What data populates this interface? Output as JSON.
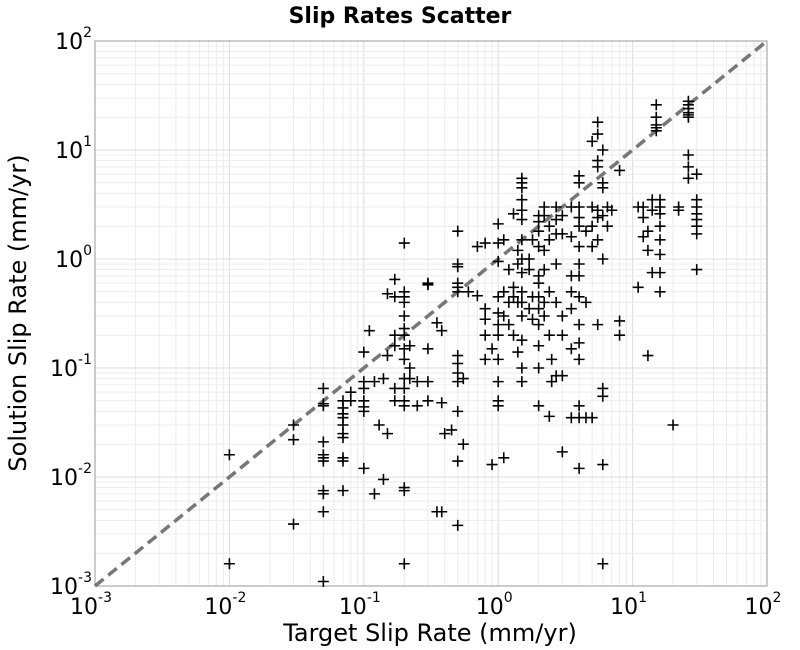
{
  "chart_data": {
    "type": "scatter",
    "title": "Slip Rates Scatter",
    "xlabel": "Target Slip Rate (mm/yr)",
    "ylabel": "Solution Slip Rate (mm/yr)",
    "xscale": "log",
    "yscale": "log",
    "xlim": [
      0.001,
      100
    ],
    "ylim": [
      0.001,
      100
    ],
    "x_ticks": [
      {
        "base": "10",
        "exp": "-3"
      },
      {
        "base": "10",
        "exp": "-2"
      },
      {
        "base": "10",
        "exp": "-1"
      },
      {
        "base": "10",
        "exp": "0"
      },
      {
        "base": "10",
        "exp": "1"
      },
      {
        "base": "10",
        "exp": "2"
      }
    ],
    "y_ticks": [
      {
        "base": "10",
        "exp": "-3"
      },
      {
        "base": "10",
        "exp": "-2"
      },
      {
        "base": "10",
        "exp": "-1"
      },
      {
        "base": "10",
        "exp": "0"
      },
      {
        "base": "10",
        "exp": "1"
      },
      {
        "base": "10",
        "exp": "2"
      }
    ],
    "grid": true,
    "marker": "+",
    "marker_color": "#000000",
    "reference_line": {
      "style": "dashed",
      "color": "#777777",
      "from": [
        0.001,
        0.001
      ],
      "to": [
        100,
        100
      ]
    },
    "points": [
      [
        0.01,
        0.016
      ],
      [
        0.01,
        0.0016
      ],
      [
        0.03,
        0.03
      ],
      [
        0.03,
        0.022
      ],
      [
        0.03,
        0.0037
      ],
      [
        0.05,
        0.065
      ],
      [
        0.05,
        0.045
      ],
      [
        0.05,
        0.047
      ],
      [
        0.05,
        0.021
      ],
      [
        0.05,
        0.016
      ],
      [
        0.05,
        0.015
      ],
      [
        0.05,
        0.014
      ],
      [
        0.05,
        0.0075
      ],
      [
        0.05,
        0.007
      ],
      [
        0.05,
        0.0048
      ],
      [
        0.05,
        0.0011
      ],
      [
        0.07,
        0.05
      ],
      [
        0.07,
        0.043
      ],
      [
        0.07,
        0.038
      ],
      [
        0.07,
        0.035
      ],
      [
        0.07,
        0.03
      ],
      [
        0.07,
        0.025
      ],
      [
        0.07,
        0.023
      ],
      [
        0.07,
        0.015
      ],
      [
        0.07,
        0.014
      ],
      [
        0.07,
        0.0075
      ],
      [
        0.08,
        0.05
      ],
      [
        0.08,
        0.06
      ],
      [
        0.1,
        0.14
      ],
      [
        0.1,
        0.075
      ],
      [
        0.1,
        0.065
      ],
      [
        0.1,
        0.05
      ],
      [
        0.1,
        0.044
      ],
      [
        0.1,
        0.04
      ],
      [
        0.1,
        0.012
      ],
      [
        0.11,
        0.22
      ],
      [
        0.12,
        0.075
      ],
      [
        0.12,
        0.007
      ],
      [
        0.13,
        0.03
      ],
      [
        0.14,
        0.08
      ],
      [
        0.14,
        0.0095
      ],
      [
        0.15,
        0.48
      ],
      [
        0.15,
        0.13
      ],
      [
        0.15,
        0.025
      ],
      [
        0.17,
        0.65
      ],
      [
        0.17,
        0.45
      ],
      [
        0.17,
        0.2
      ],
      [
        0.17,
        0.16
      ],
      [
        0.17,
        0.065
      ],
      [
        0.17,
        0.05
      ],
      [
        0.2,
        1.4
      ],
      [
        0.2,
        0.5
      ],
      [
        0.2,
        0.45
      ],
      [
        0.2,
        0.4
      ],
      [
        0.2,
        0.3
      ],
      [
        0.2,
        0.23
      ],
      [
        0.2,
        0.2
      ],
      [
        0.2,
        0.15
      ],
      [
        0.2,
        0.12
      ],
      [
        0.2,
        0.08
      ],
      [
        0.2,
        0.065
      ],
      [
        0.2,
        0.05
      ],
      [
        0.2,
        0.045
      ],
      [
        0.2,
        0.008
      ],
      [
        0.2,
        0.0075
      ],
      [
        0.2,
        0.0016
      ],
      [
        0.22,
        0.16
      ],
      [
        0.22,
        0.1
      ],
      [
        0.22,
        0.08
      ],
      [
        0.25,
        0.075
      ],
      [
        0.25,
        0.045
      ],
      [
        0.3,
        0.6
      ],
      [
        0.3,
        0.58
      ],
      [
        0.3,
        0.15
      ],
      [
        0.3,
        0.075
      ],
      [
        0.3,
        0.05
      ],
      [
        0.35,
        0.26
      ],
      [
        0.35,
        0.0048
      ],
      [
        0.38,
        0.22
      ],
      [
        0.38,
        0.048
      ],
      [
        0.38,
        0.0048
      ],
      [
        0.4,
        0.025
      ],
      [
        0.45,
        0.027
      ],
      [
        0.5,
        1.8
      ],
      [
        0.5,
        0.9
      ],
      [
        0.5,
        0.85
      ],
      [
        0.5,
        0.6
      ],
      [
        0.5,
        0.55
      ],
      [
        0.5,
        0.5
      ],
      [
        0.5,
        0.13
      ],
      [
        0.5,
        0.11
      ],
      [
        0.5,
        0.09
      ],
      [
        0.5,
        0.075
      ],
      [
        0.5,
        0.04
      ],
      [
        0.5,
        0.014
      ],
      [
        0.5,
        0.0036
      ],
      [
        0.55,
        0.08
      ],
      [
        0.55,
        0.02
      ],
      [
        0.6,
        0.5
      ],
      [
        0.7,
        1.3
      ],
      [
        0.7,
        0.46
      ],
      [
        0.8,
        1.4
      ],
      [
        0.8,
        0.35
      ],
      [
        0.8,
        0.28
      ],
      [
        0.8,
        0.2
      ],
      [
        0.8,
        0.12
      ],
      [
        0.9,
        0.15
      ],
      [
        0.9,
        0.013
      ],
      [
        1.0,
        2.1
      ],
      [
        1.0,
        1.4
      ],
      [
        1.0,
        0.95
      ],
      [
        1.0,
        0.45
      ],
      [
        1.0,
        0.32
      ],
      [
        1.0,
        0.25
      ],
      [
        1.0,
        0.2
      ],
      [
        1.0,
        0.12
      ],
      [
        1.0,
        0.075
      ],
      [
        1.0,
        0.05
      ],
      [
        1.0,
        0.045
      ],
      [
        1.1,
        1.5
      ],
      [
        1.1,
        0.5
      ],
      [
        1.1,
        0.3
      ],
      [
        1.1,
        0.015
      ],
      [
        1.2,
        0.8
      ],
      [
        1.2,
        0.4
      ],
      [
        1.2,
        0.25
      ],
      [
        1.3,
        2.6
      ],
      [
        1.3,
        0.55
      ],
      [
        1.3,
        0.45
      ],
      [
        1.3,
        0.2
      ],
      [
        1.4,
        1.2
      ],
      [
        1.4,
        0.9
      ],
      [
        1.4,
        0.4
      ],
      [
        1.4,
        0.14
      ],
      [
        1.5,
        5.5
      ],
      [
        1.5,
        5.0
      ],
      [
        1.5,
        4.5
      ],
      [
        1.5,
        3.5
      ],
      [
        1.5,
        2.8
      ],
      [
        1.5,
        2.3
      ],
      [
        1.5,
        1.5
      ],
      [
        1.5,
        1.0
      ],
      [
        1.5,
        0.75
      ],
      [
        1.5,
        0.5
      ],
      [
        1.5,
        0.4
      ],
      [
        1.5,
        0.3
      ],
      [
        1.5,
        0.18
      ],
      [
        1.5,
        0.1
      ],
      [
        1.5,
        0.075
      ],
      [
        1.7,
        1.0
      ],
      [
        1.7,
        0.8
      ],
      [
        1.7,
        0.35
      ],
      [
        1.8,
        1.5
      ],
      [
        1.8,
        0.45
      ],
      [
        1.8,
        0.28
      ],
      [
        2.0,
        2.5
      ],
      [
        2.0,
        2.2
      ],
      [
        2.0,
        1.8
      ],
      [
        2.0,
        1.3
      ],
      [
        2.0,
        0.7
      ],
      [
        2.0,
        0.6
      ],
      [
        2.0,
        0.45
      ],
      [
        2.0,
        0.35
      ],
      [
        2.0,
        0.25
      ],
      [
        2.0,
        0.16
      ],
      [
        2.0,
        0.1
      ],
      [
        2.0,
        0.045
      ],
      [
        2.2,
        3.0
      ],
      [
        2.2,
        2.5
      ],
      [
        2.2,
        1.2
      ],
      [
        2.2,
        0.8
      ],
      [
        2.2,
        0.4
      ],
      [
        2.2,
        0.3
      ],
      [
        2.4,
        2.0
      ],
      [
        2.4,
        1.5
      ],
      [
        2.4,
        0.5
      ],
      [
        2.4,
        0.2
      ],
      [
        2.4,
        0.036
      ],
      [
        2.5,
        0.12
      ],
      [
        2.5,
        0.075
      ],
      [
        2.7,
        3.0
      ],
      [
        2.7,
        2.3
      ],
      [
        2.7,
        1.7
      ],
      [
        2.7,
        0.9
      ],
      [
        2.7,
        0.4
      ],
      [
        2.7,
        0.085
      ],
      [
        3.0,
        2.5
      ],
      [
        3.0,
        1.7
      ],
      [
        3.0,
        0.3
      ],
      [
        3.0,
        0.2
      ],
      [
        3.0,
        0.085
      ],
      [
        3.0,
        0.017
      ],
      [
        3.5,
        3.0
      ],
      [
        3.5,
        1.6
      ],
      [
        3.5,
        0.7
      ],
      [
        3.5,
        0.5
      ],
      [
        3.5,
        0.35
      ],
      [
        3.5,
        0.15
      ],
      [
        3.5,
        0.035
      ],
      [
        4.0,
        5.8
      ],
      [
        4.0,
        5.0
      ],
      [
        4.0,
        3.0
      ],
      [
        4.0,
        2.4
      ],
      [
        4.0,
        2.0
      ],
      [
        4.0,
        1.3
      ],
      [
        4.0,
        0.9
      ],
      [
        4.0,
        0.7
      ],
      [
        4.0,
        0.45
      ],
      [
        4.0,
        0.25
      ],
      [
        4.0,
        0.17
      ],
      [
        4.0,
        0.12
      ],
      [
        4.0,
        0.045
      ],
      [
        4.0,
        0.035
      ],
      [
        4.0,
        0.012
      ],
      [
        4.5,
        1.8
      ],
      [
        4.5,
        0.4
      ],
      [
        4.5,
        0.035
      ],
      [
        5.0,
        12.0
      ],
      [
        5.0,
        3.0
      ],
      [
        5.0,
        2.0
      ],
      [
        5.0,
        1.3
      ],
      [
        5.0,
        0.035
      ],
      [
        5.5,
        18.0
      ],
      [
        5.5,
        14.0
      ],
      [
        5.5,
        8.0
      ],
      [
        5.5,
        7.0
      ],
      [
        5.5,
        2.8
      ],
      [
        5.5,
        2.4
      ],
      [
        5.5,
        1.5
      ],
      [
        5.5,
        0.25
      ],
      [
        6.0,
        10.0
      ],
      [
        6.0,
        5.0
      ],
      [
        6.0,
        4.5
      ],
      [
        6.0,
        2.5
      ],
      [
        6.0,
        1.0
      ],
      [
        6.0,
        0.065
      ],
      [
        6.0,
        0.055
      ],
      [
        6.0,
        0.0016
      ],
      [
        6.0,
        0.013
      ],
      [
        6.5,
        3.0
      ],
      [
        6.5,
        2.0
      ],
      [
        7.0,
        2.8
      ],
      [
        8.0,
        6.5
      ],
      [
        8.0,
        0.27
      ],
      [
        8.0,
        0.2
      ],
      [
        11.0,
        0.55
      ],
      [
        11.0,
        3.0
      ],
      [
        12.0,
        3.0
      ],
      [
        12.0,
        2.4
      ],
      [
        12.0,
        1.6
      ],
      [
        13.0,
        1.8
      ],
      [
        13.0,
        1.2
      ],
      [
        13.0,
        0.13
      ],
      [
        14.0,
        3.5
      ],
      [
        14.0,
        2.8
      ],
      [
        14.0,
        0.75
      ],
      [
        15.0,
        26.0
      ],
      [
        15.0,
        20.0
      ],
      [
        15.0,
        17.0
      ],
      [
        15.0,
        16.0
      ],
      [
        15.0,
        15.0
      ],
      [
        16.0,
        3.5
      ],
      [
        16.0,
        3.0
      ],
      [
        16.0,
        2.6
      ],
      [
        16.0,
        2.0
      ],
      [
        16.0,
        1.5
      ],
      [
        16.0,
        1.1
      ],
      [
        16.0,
        0.75
      ],
      [
        16.0,
        0.5
      ],
      [
        20.0,
        0.03
      ],
      [
        22.0,
        3.0
      ],
      [
        22.0,
        2.8
      ],
      [
        26.0,
        28.0
      ],
      [
        26.0,
        26.0
      ],
      [
        26.0,
        24.0
      ],
      [
        26.0,
        22.0
      ],
      [
        26.0,
        21.0
      ],
      [
        26.0,
        20.0
      ],
      [
        26.0,
        9.0
      ],
      [
        26.0,
        7.0
      ],
      [
        26.0,
        5.5
      ],
      [
        30.0,
        6.0
      ],
      [
        30.0,
        3.5
      ],
      [
        30.0,
        3.0
      ],
      [
        30.0,
        2.6
      ],
      [
        30.0,
        2.3
      ],
      [
        30.0,
        2.0
      ],
      [
        30.0,
        1.7
      ],
      [
        30.0,
        0.8
      ]
    ]
  }
}
